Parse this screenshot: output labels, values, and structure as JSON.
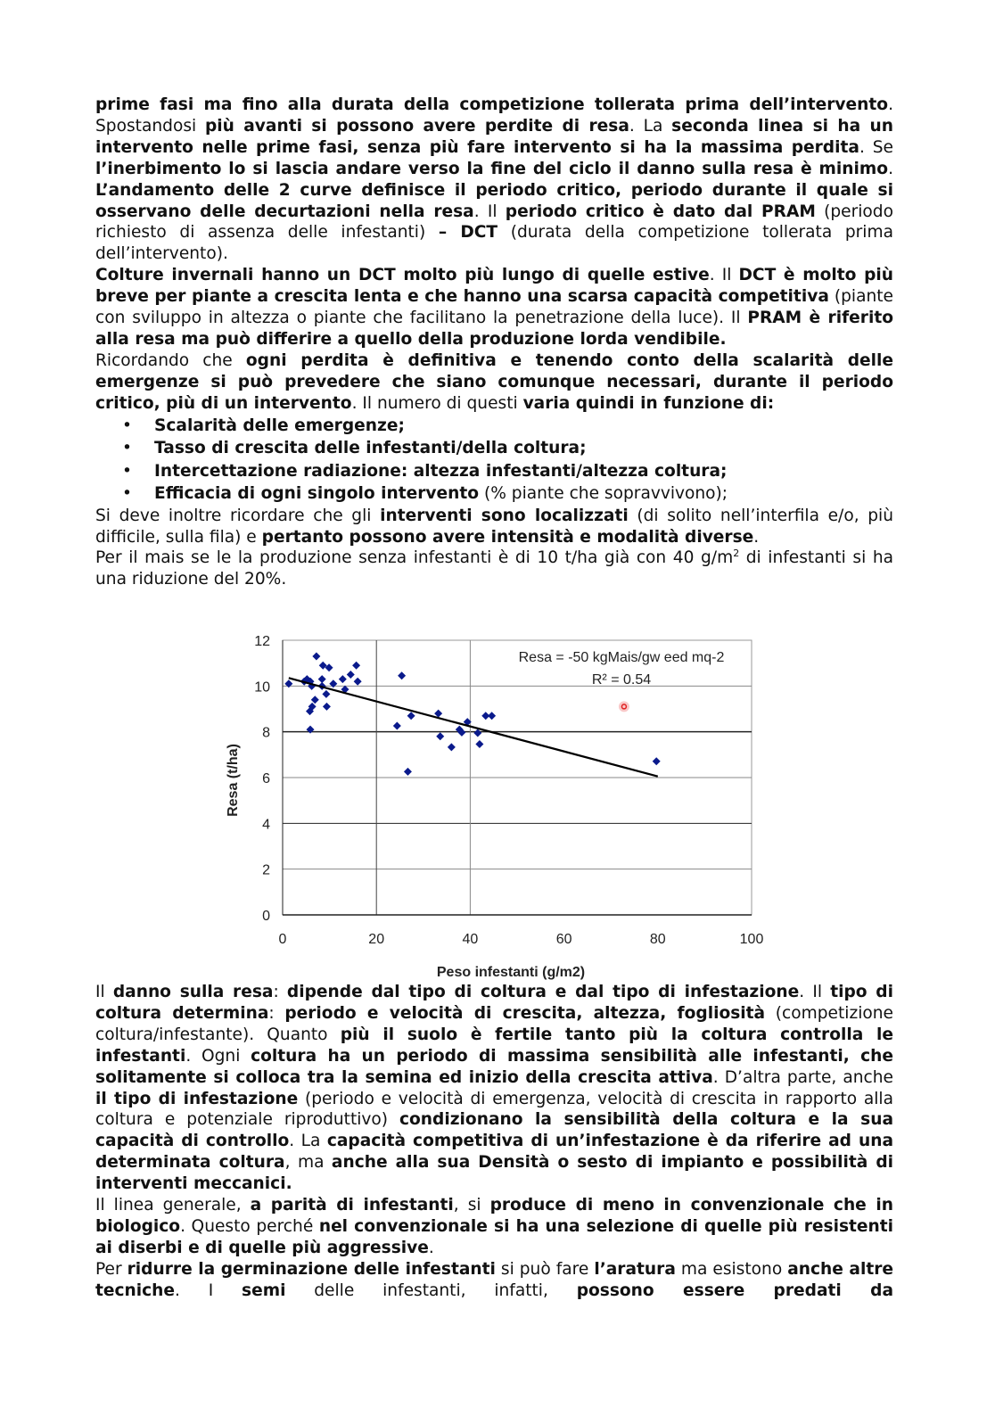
{
  "main": {
    "top_paragraphs": [
      {
        "runs": [
          {
            "t": "prime fasi ma fino alla durata della competizione tollerata prima dell’intervento",
            "b": true
          },
          {
            "t": ". Spostandosi "
          },
          {
            "t": "più avanti si possono avere perdite di resa",
            "b": true
          },
          {
            "t": ". La "
          },
          {
            "t": "seconda linea si ha un intervento nelle prime fasi, senza più fare intervento si ha la massima perdita",
            "b": true
          },
          {
            "t": ". Se "
          },
          {
            "t": "l’inerbimento lo si lascia andare verso la fine del ciclo il danno sulla resa è minimo",
            "b": true
          },
          {
            "t": ". "
          },
          {
            "t": "L’andamento delle 2 curve definisce il periodo critico, periodo durante il quale si osservano delle decurtazioni nella resa",
            "b": true
          },
          {
            "t": ". Il "
          },
          {
            "t": "periodo critico è dato dal PRAM",
            "b": true
          },
          {
            "t": " (periodo richiesto di assenza delle infestanti) "
          },
          {
            "t": "– DCT",
            "b": true
          },
          {
            "t": " (durata della competizione tollerata prima dell’intervento)."
          }
        ]
      },
      {
        "runs": [
          {
            "t": "Colture invernali hanno un DCT molto più lungo di quelle estive",
            "b": true
          },
          {
            "t": ". Il "
          },
          {
            "t": "DCT è molto più breve per piante a crescita lenta e che hanno una scarsa capacità competitiva",
            "b": true
          },
          {
            "t": " (piante con sviluppo in altezza o piante che facilitano la penetrazione della luce). Il "
          },
          {
            "t": "PRAM è riferito alla resa ma può differire a quello della produzione lorda vendibile.",
            "b": true
          }
        ]
      },
      {
        "runs": [
          {
            "t": "Ricordando che "
          },
          {
            "t": "ogni perdita è definitiva e tenendo conto della scalarità delle emergenze si può prevedere che siano comunque necessari, durante il periodo critico, più di un intervento",
            "b": true
          },
          {
            "t": ". Il numero di questi "
          },
          {
            "t": "varia quindi in funzione di:",
            "b": true
          }
        ]
      }
    ],
    "bullet_symbol": "•",
    "bullets": [
      {
        "runs": [
          {
            "t": "Scalarità delle emergenze;",
            "b": true
          }
        ]
      },
      {
        "runs": [
          {
            "t": "Tasso di crescita delle infestanti/della coltura;",
            "b": true
          }
        ]
      },
      {
        "runs": [
          {
            "t": "Intercettazione radiazione: altezza infestanti/altezza coltura;",
            "b": true
          }
        ]
      },
      {
        "runs": [
          {
            "t": "Efficacia di ogni singolo intervento",
            "b": true
          },
          {
            "t": " (% piante che sopravvivono);"
          }
        ]
      }
    ],
    "mid_paragraphs": [
      {
        "runs": [
          {
            "t": "Si deve inoltre ricordare che gli "
          },
          {
            "t": "interventi sono localizzati",
            "b": true
          },
          {
            "t": " (di solito nell’interfila e/o, più difficile, sulla fila) e "
          },
          {
            "t": "pertanto possono avere intensità e modalità diverse",
            "b": true
          },
          {
            "t": "."
          }
        ]
      },
      {
        "runs": [
          {
            "t": "Per il mais se le la produzione senza infestanti è di 10 t/ha già con 40 g/m"
          },
          {
            "t": "2",
            "sup": true
          },
          {
            "t": " di infestanti si ha una riduzione del 20%."
          }
        ]
      }
    ],
    "bottom_paragraphs": [
      {
        "runs": [
          {
            "t": "Il "
          },
          {
            "t": "danno sulla resa",
            "b": true
          },
          {
            "t": ": "
          },
          {
            "t": "dipende dal tipo di coltura e dal tipo di infestazione",
            "b": true
          },
          {
            "t": ". Il "
          },
          {
            "t": "tipo di coltura determina",
            "b": true
          },
          {
            "t": ": "
          },
          {
            "t": "periodo e velocità di crescita, altezza, fogliosità",
            "b": true
          },
          {
            "t": " (competizione coltura/infestante). Quanto "
          },
          {
            "t": "più il suolo è fertile tanto più la coltura controlla le infestanti",
            "b": true
          },
          {
            "t": ". Ogni "
          },
          {
            "t": "coltura ha un periodo di massima sensibilità alle infestanti, che solitamente si colloca tra la semina ed inizio della crescita attiva",
            "b": true
          },
          {
            "t": ". D’altra parte, anche "
          },
          {
            "t": "il tipo di infestazione",
            "b": true
          },
          {
            "t": " (periodo e velocità di emergenza, velocità di crescita in rapporto alla coltura e potenziale riproduttivo) "
          },
          {
            "t": "condizionano la sensibilità della coltura e la sua capacità di controllo",
            "b": true
          },
          {
            "t": ". La "
          },
          {
            "t": "capacità competitiva di un’infestazione è da riferire ad una determinata coltura",
            "b": true
          },
          {
            "t": ", ma "
          },
          {
            "t": "anche alla sua Densità o sesto di impianto e possibilità di interventi meccanici.",
            "b": true
          }
        ]
      },
      {
        "runs": [
          {
            "t": "Il linea generale, "
          },
          {
            "t": "a parità di infestanti",
            "b": true
          },
          {
            "t": ", si "
          },
          {
            "t": "produce di meno in convenzionale che in biologico",
            "b": true
          },
          {
            "t": ". Questo perché "
          },
          {
            "t": "nel convenzionale si ha una selezione di quelle più resistenti ai diserbi e di quelle più aggressive",
            "b": true
          },
          {
            "t": "."
          }
        ]
      },
      {
        "cont": true,
        "runs": [
          {
            "t": "Per "
          },
          {
            "t": "ridurre la germinazione delle infestanti",
            "b": true
          },
          {
            "t": " si può fare "
          },
          {
            "t": "l’aratura",
            "b": true
          },
          {
            "t": " ma esistono "
          },
          {
            "t": "anche altre tecniche",
            "b": true
          },
          {
            "t": ". I "
          },
          {
            "t": "semi",
            "b": true
          },
          {
            "t": " delle infestanti, infatti, "
          },
          {
            "t": "possono essere predati da",
            "b": true
          }
        ]
      }
    ]
  },
  "chart_data": {
    "type": "scatter",
    "xlabel": "Peso infestanti (g/m2)",
    "ylabel": "Resa (t/ha)",
    "xlim": [
      0,
      100
    ],
    "ylim": [
      0,
      12
    ],
    "xticks": [
      "0",
      "20",
      "40",
      "60",
      "80",
      "100"
    ],
    "yticks": [
      "0",
      "2",
      "4",
      "6",
      "8",
      "10",
      "12"
    ],
    "grid": true,
    "annotation": [
      "Resa  = -50 kgMais/gw eed mq-2",
      "R² = 0.54"
    ],
    "marker_color": "#0a1a8c",
    "points": [
      [
        1.3,
        10.1
      ],
      [
        4.6,
        10.2
      ],
      [
        5.2,
        10.3
      ],
      [
        5.9,
        10.2
      ],
      [
        6.2,
        10.0
      ],
      [
        7.2,
        11.3
      ],
      [
        8.6,
        10.9
      ],
      [
        9.9,
        10.8
      ],
      [
        8.4,
        10.3
      ],
      [
        8.4,
        10.0
      ],
      [
        10.8,
        10.1
      ],
      [
        9.3,
        9.65
      ],
      [
        6.9,
        9.4
      ],
      [
        6.3,
        9.1
      ],
      [
        5.8,
        8.9
      ],
      [
        9.4,
        9.1
      ],
      [
        5.9,
        8.1
      ],
      [
        12.8,
        10.3
      ],
      [
        13.3,
        9.85
      ],
      [
        14.5,
        10.5
      ],
      [
        15.7,
        10.9
      ],
      [
        16.0,
        10.2
      ],
      [
        25.4,
        10.45
      ],
      [
        24.4,
        8.26
      ],
      [
        27.4,
        8.7
      ],
      [
        26.7,
        6.26
      ],
      [
        33.2,
        8.8
      ],
      [
        33.6,
        7.8
      ],
      [
        36.0,
        7.33
      ],
      [
        37.7,
        8.1
      ],
      [
        38.2,
        7.97
      ],
      [
        39.4,
        8.43
      ],
      [
        41.6,
        7.95
      ],
      [
        42.0,
        7.46
      ],
      [
        43.3,
        8.7
      ],
      [
        44.6,
        8.7
      ],
      [
        79.7,
        6.71
      ]
    ],
    "trendline": {
      "x": [
        1.3,
        80
      ],
      "y": [
        10.35,
        6.05
      ],
      "color": "#000000"
    },
    "highlight_marker": {
      "x": 72.8,
      "y": 9.1,
      "color": "#e02020"
    }
  }
}
